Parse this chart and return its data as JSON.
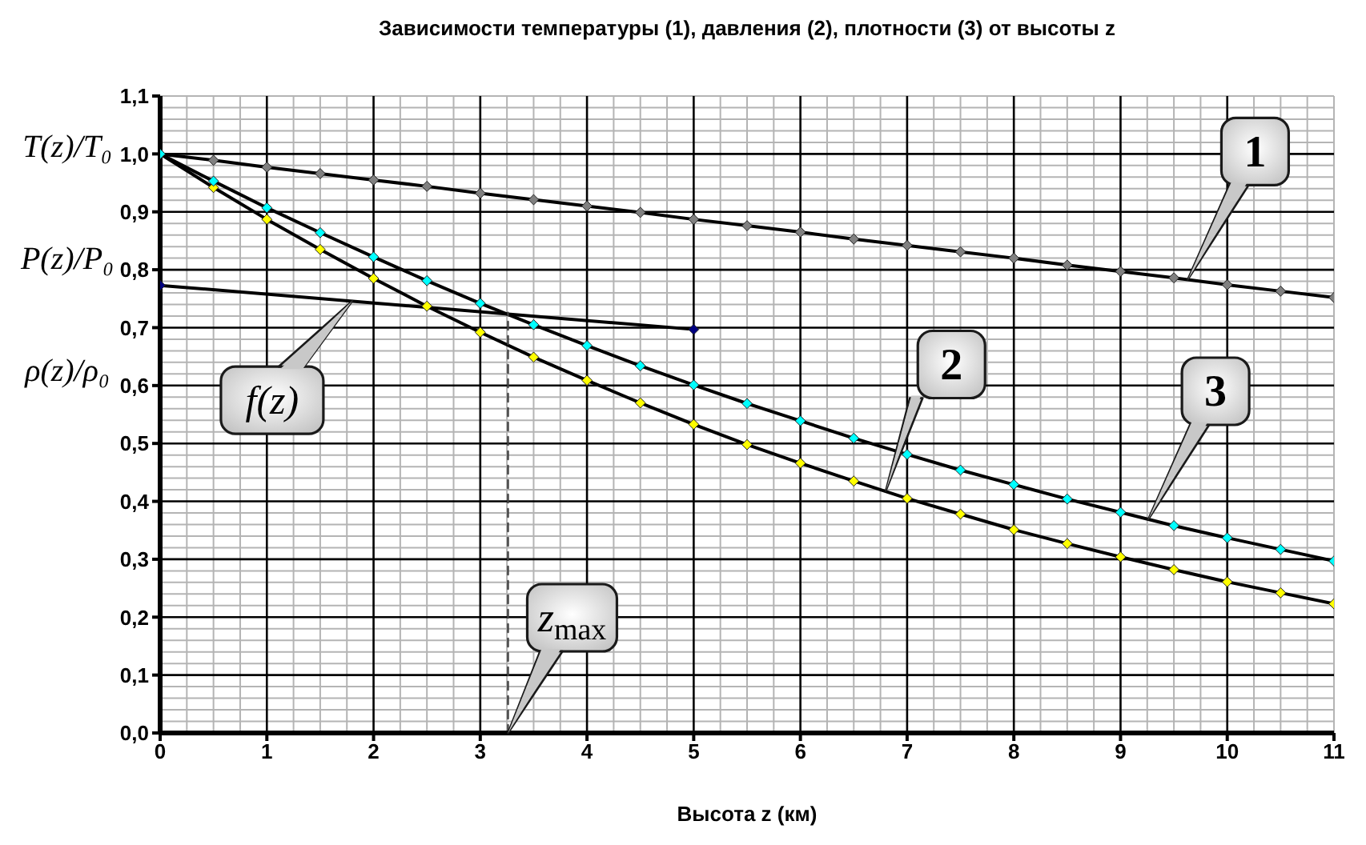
{
  "chart_data": {
    "type": "line",
    "title": "Зависимости температуры (1), давления (2), плотности (3) от высоты z",
    "xlabel": "Высота z (км)",
    "ylabel": "T(z)/T₀\nP(z)/P₀\nρ(z)/ρ₀",
    "xlim": [
      0,
      11
    ],
    "xticks": [
      0,
      1,
      2,
      3,
      4,
      5,
      6,
      7,
      8,
      9,
      10,
      11
    ],
    "ylim": [
      0,
      1.1
    ],
    "yticks": [
      {
        "value": 0,
        "label": "0,0"
      },
      {
        "value": 0.1,
        "label": "0,1"
      },
      {
        "value": 0.2,
        "label": "0,2"
      },
      {
        "value": 0.3,
        "label": "0,3"
      },
      {
        "value": 0.4,
        "label": "0,4"
      },
      {
        "value": 0.5,
        "label": "0,5"
      },
      {
        "value": 0.6,
        "label": "0,6"
      },
      {
        "value": 0.7,
        "label": "0,7"
      },
      {
        "value": 0.8,
        "label": "0,8"
      },
      {
        "value": 0.9,
        "label": "0,9"
      },
      {
        "value": 1.0,
        "label": "1,0"
      },
      {
        "value": 1.1,
        "label": "1,1"
      }
    ],
    "grid": true,
    "marker": "diamond",
    "line_style": "solid",
    "x": [
      0,
      0.5,
      1,
      1.5,
      2,
      2.5,
      3,
      3.5,
      4,
      4.5,
      5,
      5.5,
      6,
      6.5,
      7,
      7.5,
      8,
      8.5,
      9,
      9.5,
      10,
      10.5,
      11
    ],
    "series": [
      {
        "color": "#808080",
        "values": [
          1,
          0.989,
          0.977,
          0.966,
          0.955,
          0.944,
          0.932,
          0.921,
          0.91,
          0.899,
          0.887,
          0.876,
          0.865,
          0.853,
          0.842,
          0.831,
          0.82,
          0.808,
          0.797,
          0.786,
          0.774,
          0.763,
          0.752
        ]
      },
      {
        "color": "#ffff00",
        "values": [
          1,
          0.942,
          0.887,
          0.835,
          0.785,
          0.737,
          0.692,
          0.649,
          0.609,
          0.57,
          0.533,
          0.498,
          0.466,
          0.435,
          0.405,
          0.378,
          0.351,
          0.327,
          0.304,
          0.282,
          0.261,
          0.242,
          0.223
        ]
      },
      {
        "color": "#00ffff",
        "values": [
          1,
          0.953,
          0.907,
          0.864,
          0.822,
          0.781,
          0.742,
          0.705,
          0.669,
          0.634,
          0.601,
          0.569,
          0.539,
          0.509,
          0.481,
          0.454,
          0.429,
          0.404,
          0.381,
          0.358,
          0.337,
          0.317,
          0.297
        ]
      },
      {
        "color": "#000080",
        "x": [
          0,
          5
        ],
        "values": [
          0.773,
          0.697
        ]
      },
      {
        "color": "#404040",
        "x": [
          3.26,
          3.26
        ],
        "values": [
          0,
          0.726
        ],
        "marker": "none",
        "line_style": "dashed"
      }
    ],
    "annotations": [
      {
        "text": "1",
        "x": 9.63,
        "y": 0.783
      },
      {
        "text": "2",
        "x": 6.8,
        "y": 0.418
      },
      {
        "text": "3",
        "x": 9.26,
        "y": 0.369
      },
      {
        "text": "f(z)",
        "x": 1.8,
        "y": 0.746
      },
      {
        "text": "z$_{max}$",
        "x": 3.26,
        "y": 0
      }
    ]
  }
}
